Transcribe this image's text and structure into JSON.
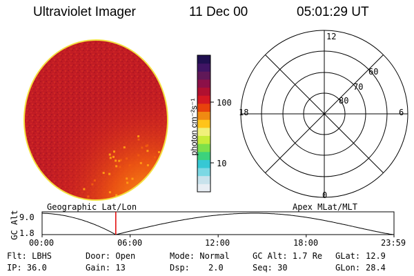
{
  "header": {
    "instrument": "Ultraviolet Imager",
    "date": "11 Dec 00",
    "time": "05:01:29 UT"
  },
  "colorbar": {
    "label": "photon cm⁻²s⁻¹",
    "ticks": [
      "100",
      "10"
    ],
    "scale": "log",
    "colors": [
      "#e8eef4",
      "#c8e2ec",
      "#7cd8e4",
      "#36c8d4",
      "#3cd27c",
      "#7de04a",
      "#c8ec3a",
      "#f0f07a",
      "#ffc41a",
      "#f08a12",
      "#e8420c",
      "#d41822",
      "#b01030",
      "#8c1048",
      "#601858",
      "#401464",
      "#201050"
    ]
  },
  "polar": {
    "mlt_labels": [
      "12",
      "18",
      "6",
      "0"
    ],
    "lat_labels": [
      "60",
      "70",
      "80"
    ]
  },
  "timeline": {
    "y_axis_label": "GC Alt",
    "y_ticks": [
      "9.0",
      "1.8"
    ],
    "left_title": "Geographic Lat/Lon",
    "right_title": "Apex MLat/MLT",
    "x_ticks": [
      "00:00",
      "06:00",
      "12:00",
      "18:00",
      "23:59"
    ],
    "current_time_hours": 5.02,
    "marker_color": "#e00000"
  },
  "info": {
    "flt": "Flt: LBHS",
    "ip": "IP: 36.0",
    "door": "Door: Open",
    "gain": "Gain: 13",
    "mode": "Mode: Normal",
    "dsp": "Dsp:",
    "dsp_value": "2.0",
    "gc_alt": "GC Alt: 1.7 Re",
    "seq": "Seq: 30",
    "glat": "GLat:",
    "glat_value": "12.9",
    "glon": "GLon:",
    "glon_value": "28.4"
  },
  "image_colors": {
    "disk_base": "#c21c24",
    "rim": "#f4e040",
    "bright": "#f05a10",
    "brightest": "#ff9a14"
  }
}
